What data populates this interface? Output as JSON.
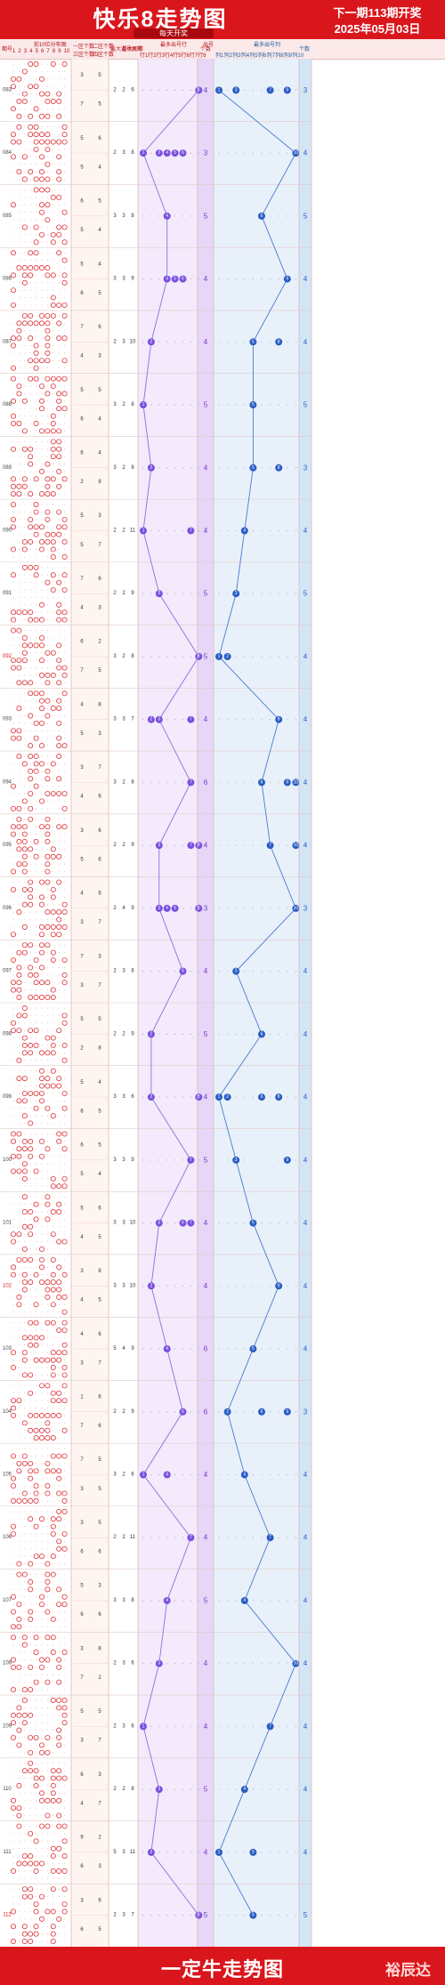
{
  "header": {
    "title": "快乐8走势图",
    "subtitle": "每天开奖",
    "next_draw": "下一期113期开奖",
    "date": "2025年05月03日"
  },
  "columns": {
    "period": "期号",
    "dist": "前10位分布图",
    "dist_nums": [
      "1",
      "2",
      "3",
      "4",
      "5",
      "6",
      "7",
      "8",
      "9",
      "10"
    ],
    "grp1": "一区个数",
    "grp1b": "三区个数",
    "grp2": "二区个数",
    "grp2b": "四区个数",
    "maxcons": "最大连号",
    "maxgap": "最大间距",
    "sum": "尾号",
    "purple_head": "最多出号行",
    "purple_sub": [
      "行1",
      "行2",
      "行3",
      "行4",
      "行5",
      "行6",
      "行7",
      "行8"
    ],
    "purple_cnt": "个数",
    "blue_head": "最多出号列",
    "blue_sub": [
      "列1",
      "列2",
      "列3",
      "列4",
      "列5",
      "列6",
      "列7",
      "列8",
      "列9",
      "列10"
    ],
    "blue_cnt": "个数",
    "chuhao": "出号"
  },
  "footer": {
    "title": "一定牛走势图",
    "logo": "裕辰达"
  },
  "colors": {
    "red": "#d9161c",
    "purple": "#7a4fe0",
    "blue": "#2a5cc4",
    "purple_bg": "#f3eafb",
    "blue_bg": "#e8f1fa"
  },
  "chart_data": {
    "type": "table",
    "periods": [
      "083",
      "084",
      "085",
      "086",
      "087",
      "088",
      "089",
      "090",
      "091",
      "092",
      "093",
      "094",
      "095",
      "096",
      "097",
      "098",
      "099",
      "100",
      "101",
      "102",
      "103",
      "104",
      "105",
      "106",
      "107",
      "108",
      "109",
      "110",
      "111",
      "112"
    ],
    "highlight_periods": [
      "092",
      "102",
      "112"
    ],
    "zone_counts": [
      [
        3,
        5,
        7,
        5
      ],
      [
        5,
        6,
        5,
        4
      ],
      [
        6,
        5,
        5,
        4
      ],
      [
        5,
        4,
        6,
        5
      ],
      [
        7,
        6,
        4,
        3
      ],
      [
        5,
        5,
        6,
        4
      ],
      [
        6,
        4,
        2,
        8
      ],
      [
        5,
        3,
        5,
        7
      ],
      [
        7,
        6,
        4,
        3
      ],
      [
        6,
        2,
        7,
        5
      ],
      [
        4,
        8,
        5,
        3
      ],
      [
        3,
        7,
        4,
        6
      ],
      [
        3,
        6,
        5,
        6
      ],
      [
        4,
        6,
        3,
        7
      ],
      [
        7,
        3,
        3,
        7
      ],
      [
        5,
        5,
        2,
        8
      ],
      [
        5,
        4,
        6,
        5
      ],
      [
        6,
        5,
        5,
        4
      ],
      [
        5,
        6,
        4,
        5
      ],
      [
        3,
        8,
        4,
        5
      ],
      [
        4,
        6,
        3,
        7
      ],
      [
        1,
        6,
        7,
        6
      ],
      [
        7,
        5,
        3,
        5
      ],
      [
        3,
        5,
        6,
        6
      ],
      [
        5,
        3,
        6,
        6
      ],
      [
        3,
        8,
        7,
        2
      ],
      [
        5,
        5,
        3,
        7
      ],
      [
        6,
        3,
        4,
        7
      ],
      [
        9,
        2,
        6,
        3
      ],
      [
        3,
        6,
        6,
        5
      ]
    ],
    "stats": [
      [
        2,
        2,
        6
      ],
      [
        2,
        3,
        8
      ],
      [
        3,
        3,
        8
      ],
      [
        3,
        3,
        9
      ],
      [
        2,
        3,
        10
      ],
      [
        3,
        2,
        8
      ],
      [
        3,
        2,
        8
      ],
      [
        2,
        2,
        11
      ],
      [
        2,
        2,
        9
      ],
      [
        3,
        2,
        8
      ],
      [
        3,
        3,
        7
      ],
      [
        3,
        2,
        8
      ],
      [
        2,
        2,
        9
      ],
      [
        2,
        4,
        9
      ],
      [
        2,
        3,
        8
      ],
      [
        2,
        2,
        9
      ],
      [
        3,
        3,
        6
      ],
      [
        3,
        3,
        9
      ],
      [
        3,
        3,
        10
      ],
      [
        3,
        3,
        10
      ],
      [
        5,
        4,
        9
      ],
      [
        2,
        2,
        9
      ],
      [
        3,
        2,
        6
      ],
      [
        2,
        2,
        11
      ],
      [
        3,
        3,
        8
      ],
      [
        2,
        3,
        6
      ],
      [
        2,
        3,
        6
      ],
      [
        2,
        2,
        8
      ],
      [
        5,
        3,
        11
      ],
      [
        2,
        3,
        7
      ]
    ],
    "row_balls": [
      [
        8
      ],
      [
        1,
        3,
        4,
        5,
        6
      ],
      [
        4
      ],
      [
        4,
        5,
        6
      ],
      [
        2
      ],
      [
        1
      ],
      [
        2
      ],
      [
        1,
        7
      ],
      [
        3
      ],
      [
        8
      ],
      [
        2,
        3,
        7
      ],
      [
        7
      ],
      [
        3,
        7,
        8
      ],
      [
        3,
        4,
        5,
        8
      ],
      [
        6
      ],
      [
        2
      ],
      [
        2,
        8
      ],
      [
        7
      ],
      [
        3,
        6,
        7
      ],
      [
        2
      ],
      [
        4
      ],
      [
        6
      ],
      [
        1,
        4
      ],
      [
        7
      ],
      [
        4
      ],
      [
        3
      ],
      [
        1
      ],
      [
        3
      ],
      [
        2
      ],
      [
        8
      ]
    ],
    "row_line": [
      8,
      1,
      4,
      4,
      2,
      1,
      2,
      1,
      3,
      8,
      3,
      7,
      3,
      3,
      6,
      2,
      2,
      7,
      3,
      2,
      4,
      6,
      1,
      7,
      4,
      3,
      1,
      3,
      2,
      8
    ],
    "row_count": [
      4,
      3,
      5,
      4,
      4,
      5,
      4,
      4,
      5,
      5,
      4,
      6,
      4,
      3,
      4,
      5,
      4,
      5,
      4,
      4,
      6,
      6,
      4,
      4,
      5,
      4,
      4,
      5,
      4,
      5
    ],
    "col_balls": [
      [
        1,
        3,
        7,
        9
      ],
      [
        10
      ],
      [
        6
      ],
      [
        9
      ],
      [
        5,
        8
      ],
      [
        5
      ],
      [
        5,
        8
      ],
      [
        4
      ],
      [
        3
      ],
      [
        1,
        2
      ],
      [
        8
      ],
      [
        6,
        9,
        10
      ],
      [
        7,
        10
      ],
      [
        10
      ],
      [
        3
      ],
      [
        6
      ],
      [
        1,
        2,
        6,
        8
      ],
      [
        3,
        9
      ],
      [
        5
      ],
      [
        8
      ],
      [
        5
      ],
      [
        2,
        6,
        9
      ],
      [
        4
      ],
      [
        7
      ],
      [
        4
      ],
      [
        10
      ],
      [
        7
      ],
      [
        4
      ],
      [
        1,
        5
      ],
      [
        5
      ]
    ],
    "col_line": [
      1,
      10,
      6,
      9,
      5,
      5,
      5,
      4,
      3,
      1,
      8,
      6,
      7,
      10,
      3,
      6,
      1,
      3,
      5,
      8,
      5,
      2,
      4,
      7,
      4,
      10,
      7,
      4,
      1,
      5
    ],
    "col_count": [
      3,
      4,
      5,
      4,
      4,
      5,
      3,
      4,
      5,
      4,
      4,
      4,
      4,
      3,
      4,
      4,
      4,
      4,
      4,
      4,
      4,
      3,
      4,
      4,
      4,
      4,
      4,
      4,
      4,
      5
    ]
  }
}
